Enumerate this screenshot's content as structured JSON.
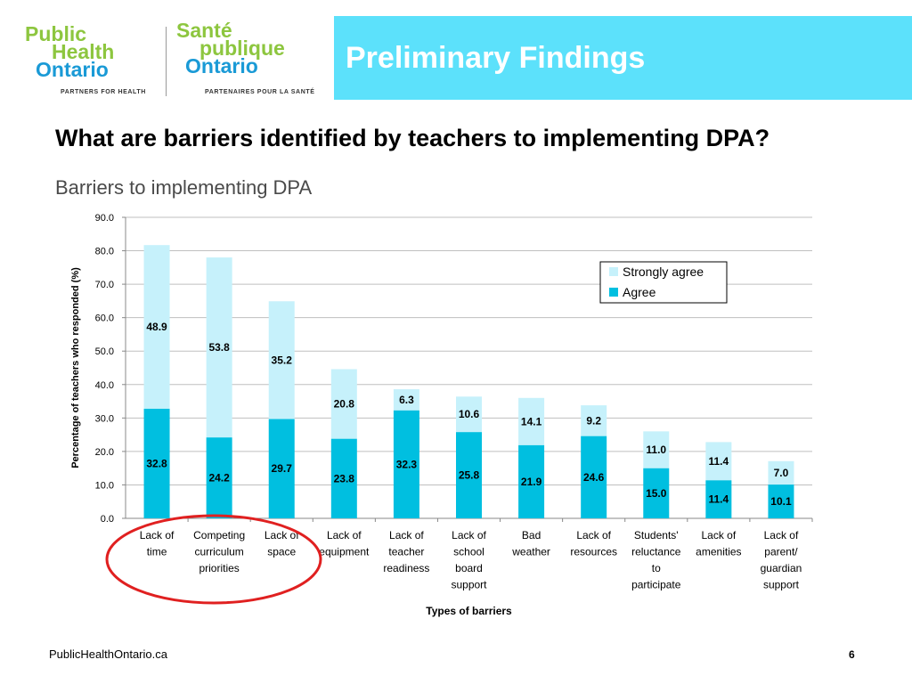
{
  "logo": {
    "en_line1": "Public",
    "en_line2": "Health",
    "en_line3": "Ontario",
    "en_tagline": "PARTNERS FOR HEALTH",
    "fr_line1": "Santé",
    "fr_line2": "publique",
    "fr_line3": "Ontario",
    "fr_tagline": "PARTENAIRES POUR LA SANTÉ"
  },
  "header": {
    "title": "Preliminary Findings"
  },
  "question": "What are barriers identified by teachers to implementing DPA?",
  "footer": {
    "url": "PublicHealthOntario.ca",
    "page": "6"
  },
  "colors": {
    "agree": "#00bfe0",
    "strongly_agree": "#c6f1fb",
    "banner": "#5ce1fb",
    "circle": "#e02020"
  },
  "chart_data": {
    "type": "bar",
    "stacked": true,
    "title": "Barriers to implementing DPA",
    "xlabel": "Types of barriers",
    "ylabel": "Percentage of teachers who responded (%)",
    "ylim": [
      0,
      90
    ],
    "yticks": [
      "0.0",
      "10.0",
      "20.0",
      "30.0",
      "40.0",
      "50.0",
      "60.0",
      "70.0",
      "80.0",
      "90.0"
    ],
    "grid": true,
    "legend_position": "top-right",
    "categories": [
      [
        "Lack of",
        "time"
      ],
      [
        "Competing",
        "curriculum",
        "priorities"
      ],
      [
        "Lack of",
        "space"
      ],
      [
        "Lack of",
        "equipment"
      ],
      [
        "Lack of",
        "teacher",
        "readiness"
      ],
      [
        "Lack of",
        "school",
        "board",
        "support"
      ],
      [
        "Bad",
        "weather"
      ],
      [
        "Lack of",
        "resources"
      ],
      [
        "Students'",
        "reluctance",
        "to",
        "participate"
      ],
      [
        "Lack of",
        "amenities"
      ],
      [
        "Lack of",
        "parent/",
        "guardian",
        "support"
      ]
    ],
    "series": [
      {
        "name": "Agree",
        "values": [
          32.8,
          24.2,
          29.7,
          23.8,
          32.3,
          25.8,
          21.9,
          24.6,
          15.0,
          11.4,
          10.1
        ],
        "labels": [
          "32.8",
          "24.2",
          "29.7",
          "23.8",
          "32.3",
          "25.8",
          "21.9",
          "24.6",
          "15.0",
          "11.4",
          "10.1"
        ]
      },
      {
        "name": "Strongly agree",
        "values": [
          48.9,
          53.8,
          35.2,
          20.8,
          6.3,
          10.6,
          14.1,
          9.2,
          11.0,
          11.4,
          7.0
        ],
        "labels": [
          "48.9",
          "53.8",
          "35.2",
          "20.8",
          "6.3",
          "10.6",
          "14.1",
          "9.2",
          "11.0",
          "11.4",
          "7.0"
        ]
      }
    ],
    "annotation": "red ellipse circling the first three categories"
  }
}
